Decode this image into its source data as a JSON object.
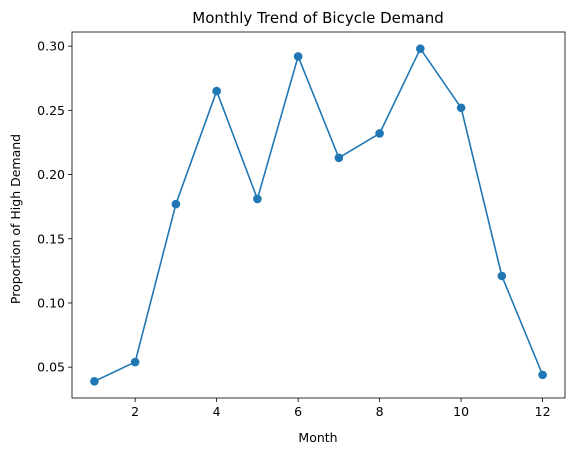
{
  "chart_data": {
    "type": "line",
    "title": "Monthly Trend of Bicycle Demand",
    "xlabel": "Month",
    "ylabel": "Proportion of High Demand",
    "xlim": [
      0.45,
      12.55
    ],
    "ylim": [
      0.026,
      0.311
    ],
    "xticks": [
      2,
      4,
      6,
      8,
      10,
      12
    ],
    "yticks": [
      0.05,
      0.1,
      0.15,
      0.2,
      0.25,
      0.3
    ],
    "ytick_labels": [
      "0.05",
      "0.10",
      "0.15",
      "0.20",
      "0.25",
      "0.30"
    ],
    "grid": false,
    "marker": "circle",
    "color": "#1f77b4",
    "series": [
      {
        "x": [
          1,
          2,
          3,
          4,
          5,
          6,
          7,
          8,
          9,
          10,
          11,
          12
        ],
        "values": [
          0.039,
          0.054,
          0.177,
          0.265,
          0.181,
          0.292,
          0.213,
          0.232,
          0.298,
          0.252,
          0.121,
          0.044
        ]
      }
    ]
  }
}
